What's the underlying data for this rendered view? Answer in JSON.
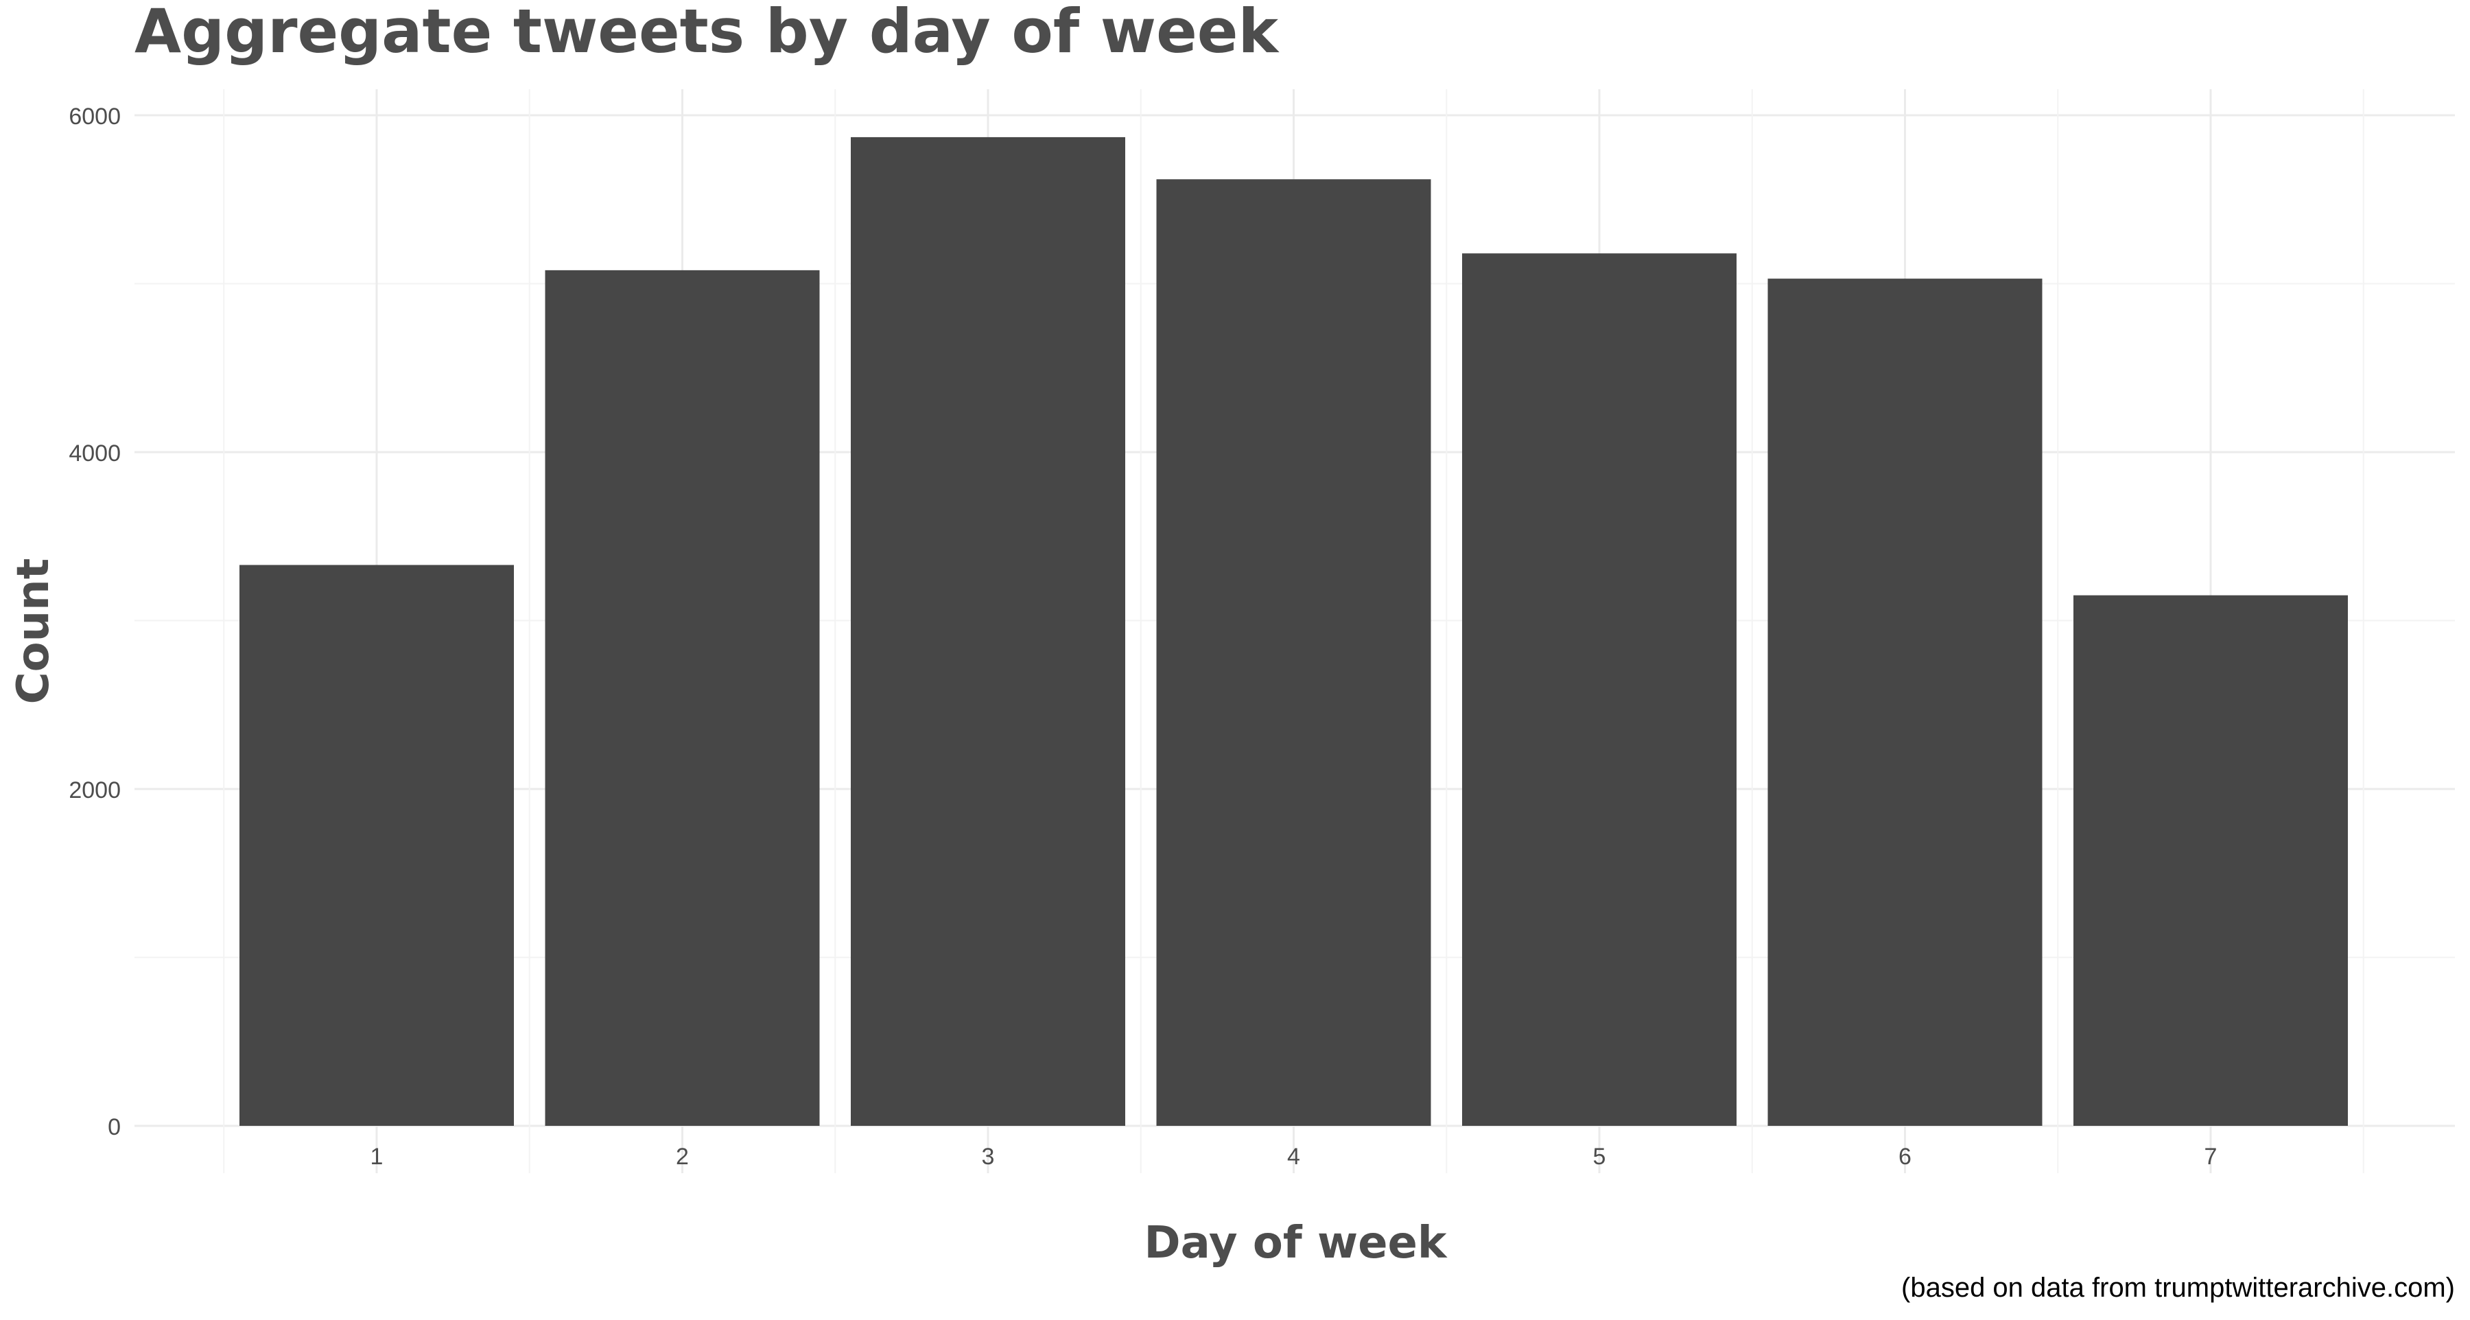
{
  "chart_data": {
    "type": "bar",
    "title": "Aggregate tweets by day of week",
    "xlabel": "Day of week",
    "ylabel": "Count",
    "caption": "(based on data from trumptwitterarchive.com)",
    "categories": [
      "1",
      "2",
      "3",
      "4",
      "5",
      "6",
      "7"
    ],
    "values": [
      3330,
      5080,
      5870,
      5620,
      5180,
      5030,
      3150
    ],
    "ylim": [
      0,
      6000
    ],
    "yticks": [
      "0",
      "2000",
      "4000",
      "6000"
    ],
    "grid": true,
    "legend": "none",
    "colors": {
      "bar": "#474747",
      "grid_major": "#ebebeb",
      "grid_minor": "#f3f3f3",
      "text": "#4d4d4d"
    }
  }
}
